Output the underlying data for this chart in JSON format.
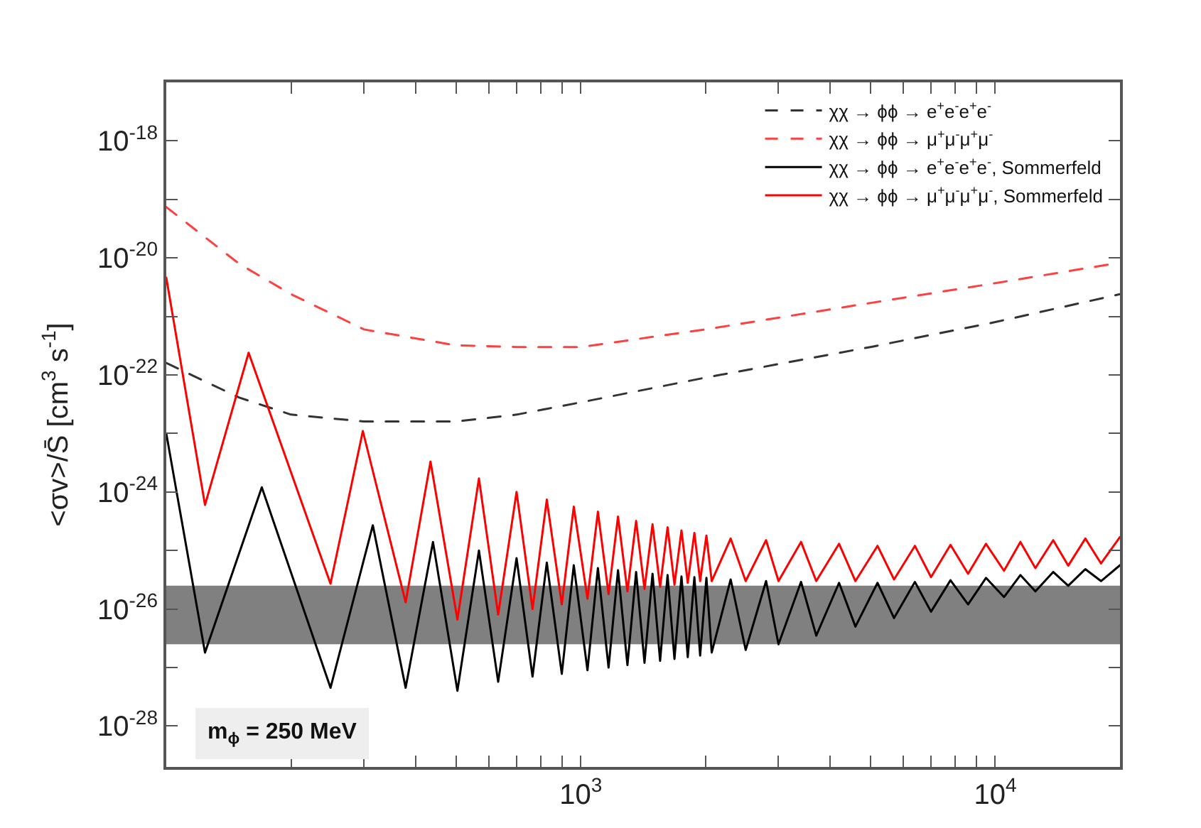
{
  "chart_data": {
    "type": "line",
    "ylabel": "<σv>/S̄ [cm$^{3}$ s$^{-1}$]",
    "log": "xy",
    "grid": false,
    "legend": "top right",
    "marker": "none",
    "xlim": [
      100,
      20000
    ],
    "xticks": [
      {
        "value": 200,
        "label": null
      },
      {
        "value": 300,
        "label": null
      },
      {
        "value": 400,
        "label": null
      },
      {
        "value": 500,
        "label": null
      },
      {
        "value": 600,
        "label": null
      },
      {
        "value": 700,
        "label": null
      },
      {
        "value": 800,
        "label": null
      },
      {
        "value": 900,
        "label": null
      },
      {
        "value": 1000,
        "label": "10$^{3}$"
      },
      {
        "value": 2000,
        "label": null
      },
      {
        "value": 3000,
        "label": null
      },
      {
        "value": 4000,
        "label": null
      },
      {
        "value": 5000,
        "label": null
      },
      {
        "value": 6000,
        "label": null
      },
      {
        "value": 7000,
        "label": null
      },
      {
        "value": 8000,
        "label": null
      },
      {
        "value": 9000,
        "label": null
      },
      {
        "value": 10000,
        "label": "10$^{4}$"
      },
      {
        "value": 20000,
        "label": null
      }
    ],
    "ylim": [
      2e-29,
      1e-17
    ],
    "yticks": [
      {
        "value": 1e-28,
        "label": "10$^{-28}$"
      },
      {
        "value": 1e-27,
        "label": null
      },
      {
        "value": 1e-26,
        "label": "10$^{-26}$"
      },
      {
        "value": 1e-25,
        "label": null
      },
      {
        "value": 1e-24,
        "label": "10$^{-24}$"
      },
      {
        "value": 1e-23,
        "label": null
      },
      {
        "value": 1e-22,
        "label": "10$^{-22}$"
      },
      {
        "value": 1e-21,
        "label": null
      },
      {
        "value": 1e-20,
        "label": "10$^{-20}$"
      },
      {
        "value": 1e-19,
        "label": null
      },
      {
        "value": 1e-18,
        "label": "10$^{-18}$"
      }
    ],
    "bands": [
      {
        "axis": "y",
        "from": 2.5e-27,
        "to": 2.5e-26,
        "color": "#808080"
      }
    ],
    "annotations": [
      "m$_{ϕ}$ = 250 MeV"
    ],
    "series": [
      {
        "name": "χχ → ϕϕ → e$^{+}$e$^{-}$e$^{+}$e$^{-}$",
        "color": "#333333",
        "line_style": "dashed",
        "x": [
          100,
          150,
          200,
          300,
          500,
          700,
          1000,
          2000,
          5000,
          10000,
          20000
        ],
        "values": [
          1.6e-22,
          4.1e-23,
          2.1e-23,
          1.6e-23,
          1.6e-23,
          2.1e-23,
          3.4e-23,
          9e-23,
          3e-22,
          8e-22,
          2.4e-21
        ]
      },
      {
        "name": "χχ → ϕϕ → μ$^{+}$μ$^{-}$μ$^{+}$μ$^{-}$",
        "color": "#ff4040",
        "line_style": "dashed",
        "x": [
          100,
          150,
          200,
          300,
          500,
          700,
          1000,
          2000,
          5000,
          10000,
          20000
        ],
        "values": [
          7.4e-20,
          7.9e-21,
          2.4e-21,
          6e-22,
          3.2e-22,
          3e-22,
          3e-22,
          6e-22,
          1.7e-21,
          3.7e-21,
          8.3e-21
        ]
      },
      {
        "name": "χχ → ϕϕ → e$^{+}$e$^{-}$e$^{+}$e$^{-}$, Sommerfeld",
        "color": "#000000",
        "line_style": "solid",
        "x": [
          100,
          124,
          170,
          249,
          315,
          378,
          440,
          504,
          568,
          632,
          700,
          765,
          828,
          900,
          962,
          1038,
          1100,
          1167,
          1230,
          1296,
          1360,
          1425,
          1490,
          1554,
          1620,
          1683,
          1750,
          1812,
          1880,
          1941,
          2010,
          2070,
          2300,
          2500,
          2800,
          3000,
          3400,
          3700,
          4200,
          4600,
          5200,
          5700,
          6400,
          7000,
          7800,
          8600,
          9500,
          10500,
          11500,
          12500,
          13800,
          15000,
          16500,
          18000,
          20000
        ],
        "values": [
          1e-23,
          1.8e-27,
          1.2e-24,
          4.5e-28,
          2.7e-25,
          4.5e-28,
          1.4e-25,
          4e-28,
          1e-25,
          5.7e-28,
          7.4e-26,
          7e-28,
          6.2e-26,
          7.8e-28,
          5.6e-26,
          9e-28,
          5e-26,
          1e-27,
          4.6e-26,
          1.1e-27,
          4.3e-26,
          1.2e-27,
          4e-26,
          1.3e-27,
          3.8e-26,
          1.4e-27,
          3.6e-26,
          1.5e-27,
          3.5e-26,
          1.6e-27,
          3.4e-26,
          1.8e-27,
          3.2e-26,
          2e-27,
          3e-26,
          2.5e-27,
          2.9e-26,
          3.5e-27,
          2.8e-26,
          5e-27,
          2.8e-26,
          7e-27,
          2.9e-26,
          9e-27,
          3.1e-26,
          1.2e-26,
          3.4e-26,
          1.6e-26,
          3.8e-26,
          2e-26,
          4.3e-26,
          2.5e-26,
          4.8e-26,
          3e-26,
          5.6e-26
        ]
      },
      {
        "name": "χχ → ϕϕ → μ$^{+}$μ$^{-}$μ$^{+}$μ$^{-}$, Sommerfeld",
        "color": "#ff0000",
        "line_style": "solid",
        "x": [
          100,
          124,
          158,
          249,
          298,
          378,
          434,
          504,
          568,
          632,
          700,
          765,
          828,
          900,
          962,
          1038,
          1100,
          1167,
          1230,
          1296,
          1360,
          1425,
          1490,
          1554,
          1620,
          1683,
          1750,
          1812,
          1880,
          1941,
          2010,
          2070,
          2300,
          2500,
          2800,
          3000,
          3400,
          3700,
          4200,
          4600,
          5200,
          5700,
          6400,
          7000,
          7800,
          8600,
          9500,
          10500,
          11500,
          12500,
          13800,
          15000,
          16500,
          18000,
          20000
        ],
        "values": [
          4.6e-21,
          6e-25,
          2.4e-22,
          2.7e-26,
          1.1e-23,
          1.3e-26,
          3.3e-24,
          6.6e-27,
          1.7e-24,
          8e-27,
          1e-24,
          1e-26,
          7.4e-25,
          1.2e-26,
          5.6e-25,
          1.5e-26,
          4.6e-25,
          1.8e-26,
          3.8e-25,
          2e-26,
          3.2e-25,
          2.2e-26,
          2.8e-25,
          2.4e-26,
          2.5e-25,
          2.6e-26,
          2.2e-25,
          2.8e-26,
          2e-25,
          3e-26,
          1.8e-25,
          3e-26,
          1.6e-25,
          3e-26,
          1.5e-25,
          3e-26,
          1.4e-25,
          3e-26,
          1.3e-25,
          3e-26,
          1.2e-25,
          3.2e-26,
          1.2e-25,
          3.5e-26,
          1.25e-25,
          4e-26,
          1.3e-25,
          4.5e-26,
          1.4e-25,
          5e-26,
          1.5e-25,
          5.5e-26,
          1.6e-25,
          6e-26,
          1.7e-25
        ]
      }
    ]
  }
}
